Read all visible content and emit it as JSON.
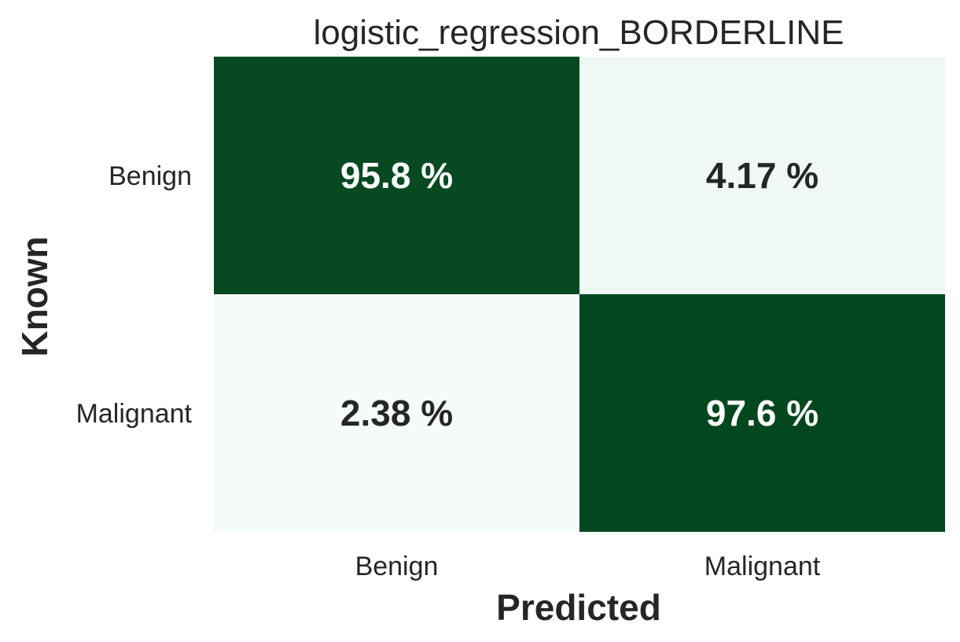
{
  "chart_data": {
    "type": "heatmap",
    "title": "logistic_regression_BORDERLINE",
    "xlabel": "Predicted",
    "ylabel": "Known",
    "x_categories": [
      "Benign",
      "Malignant"
    ],
    "y_categories": [
      "Benign",
      "Malignant"
    ],
    "values": [
      [
        95.8,
        4.17
      ],
      [
        2.38,
        97.6
      ]
    ],
    "cell_labels": [
      [
        "95.8 %",
        "4.17 %"
      ],
      [
        "2.38 %",
        "97.6 %"
      ]
    ],
    "colorscale": {
      "low": "#f5fbfa",
      "high": "#02471e"
    },
    "text_colors": {
      "on_dark": "#ffffff",
      "on_light": "#262626"
    },
    "colorbar": false,
    "grid": false
  }
}
